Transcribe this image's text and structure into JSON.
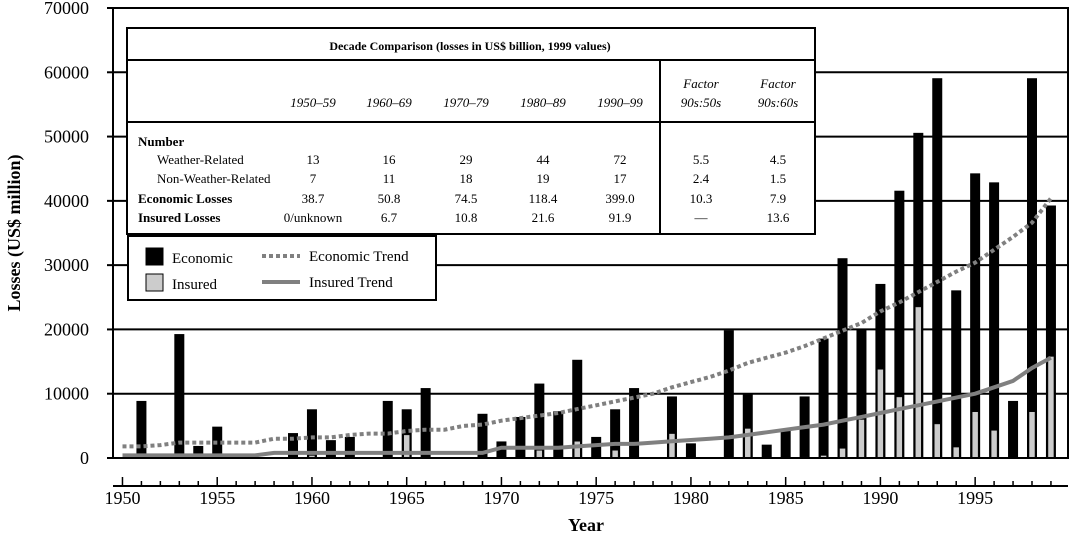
{
  "chart_data": {
    "type": "bar",
    "xlabel": "Year",
    "ylabel": "Losses (US$ million)",
    "xlim": [
      1949.5,
      1999.9
    ],
    "ylim": [
      0,
      70000
    ],
    "x_ticks": [
      1950,
      1955,
      1960,
      1965,
      1970,
      1975,
      1980,
      1985,
      1990,
      1995
    ],
    "y_ticks": [
      0,
      10000,
      20000,
      30000,
      40000,
      50000,
      60000,
      70000
    ],
    "grid": "horizontal",
    "colors": {
      "economic": "#000000",
      "insured": "#cccccc",
      "economic_trend": "#808080",
      "insured_trend": "#808080"
    },
    "x": [
      1950,
      1951,
      1952,
      1953,
      1954,
      1955,
      1956,
      1957,
      1958,
      1959,
      1960,
      1961,
      1962,
      1963,
      1964,
      1965,
      1966,
      1967,
      1968,
      1969,
      1970,
      1971,
      1972,
      1973,
      1974,
      1975,
      1976,
      1977,
      1978,
      1979,
      1980,
      1981,
      1982,
      1983,
      1984,
      1985,
      1986,
      1987,
      1988,
      1989,
      1990,
      1991,
      1992,
      1993,
      1994,
      1995,
      1996,
      1997,
      1998,
      1999
    ],
    "series": [
      {
        "name": "Economic",
        "style": "bar",
        "values": [
          0,
          8800,
          0,
          19200,
          1800,
          4800,
          0,
          0,
          0,
          3800,
          7500,
          2700,
          3200,
          0,
          8800,
          7500,
          10800,
          0,
          0,
          6800,
          2500,
          6300,
          11500,
          7200,
          15200,
          3200,
          7500,
          10800,
          0,
          9500,
          2200,
          0,
          19800,
          10000,
          2000,
          4200,
          9500,
          18500,
          31000,
          20000,
          27000,
          41500,
          50500,
          59000,
          26000,
          44200,
          42800,
          8800,
          59000,
          39200
        ]
      },
      {
        "name": "Insured",
        "style": "bar",
        "values": [
          0,
          0,
          0,
          0,
          0,
          0,
          0,
          0,
          0,
          0,
          400,
          0,
          0,
          0,
          0,
          3600,
          0,
          0,
          0,
          0,
          0,
          0,
          1200,
          0,
          2600,
          0,
          1200,
          0,
          0,
          3800,
          0,
          0,
          0,
          4600,
          0,
          0,
          200,
          400,
          1500,
          6000,
          13800,
          9500,
          23500,
          5300,
          1700,
          7200,
          4300,
          0,
          7200,
          15800
        ]
      },
      {
        "name": "Economic Trend",
        "style": "dotted-line",
        "values": [
          1800,
          1800,
          2000,
          2400,
          2400,
          2400,
          2400,
          2400,
          3000,
          3000,
          3200,
          3200,
          3600,
          3800,
          3800,
          4200,
          4400,
          4400,
          5000,
          5200,
          5800,
          6200,
          6600,
          7000,
          7600,
          8200,
          8800,
          9400,
          10000,
          11000,
          11800,
          12600,
          13600,
          14800,
          15600,
          16400,
          17400,
          18600,
          19800,
          21000,
          22800,
          24200,
          25800,
          27400,
          29000,
          30400,
          32400,
          34400,
          36600,
          40400
        ]
      },
      {
        "name": "Insured Trend",
        "style": "solid-line",
        "values": [
          400,
          400,
          400,
          400,
          400,
          400,
          400,
          400,
          800,
          800,
          800,
          800,
          800,
          800,
          800,
          800,
          800,
          800,
          800,
          800,
          1600,
          1600,
          1600,
          1600,
          1800,
          2000,
          2200,
          2200,
          2400,
          2600,
          2800,
          3000,
          3200,
          3600,
          4000,
          4400,
          4800,
          5200,
          5800,
          6400,
          7000,
          7600,
          8200,
          8800,
          9400,
          10000,
          11000,
          12000,
          14000,
          15600
        ]
      }
    ],
    "legend": {
      "position": "upper-left",
      "items": [
        "Economic",
        "Insured",
        "Economic Trend",
        "Insured Trend"
      ]
    },
    "table": {
      "title": "Decade Comparison (losses in US$ billion, 1999 values)",
      "decades": [
        "1950–59",
        "1960–69",
        "1970–79",
        "1980–89",
        "1990–99"
      ],
      "factor_headers": [
        [
          "Factor",
          "90s:50s"
        ],
        [
          "Factor",
          "90s:60s"
        ]
      ],
      "number_heading": "Number",
      "rows": [
        {
          "label": "Weather-Related",
          "bold": false,
          "values": [
            "13",
            "16",
            "29",
            "44",
            "72",
            "5.5",
            "4.5"
          ]
        },
        {
          "label": "Non-Weather-Related",
          "bold": false,
          "values": [
            "7",
            "11",
            "18",
            "19",
            "17",
            "2.4",
            "1.5"
          ]
        },
        {
          "label": "Economic Losses",
          "bold": true,
          "values": [
            "38.7",
            "50.8",
            "74.5",
            "118.4",
            "399.0",
            "10.3",
            "7.9"
          ]
        },
        {
          "label": "Insured Losses",
          "bold": true,
          "values": [
            "0/unknown",
            "6.7",
            "10.8",
            "21.6",
            "91.9",
            "—",
            "13.6"
          ]
        }
      ]
    }
  }
}
